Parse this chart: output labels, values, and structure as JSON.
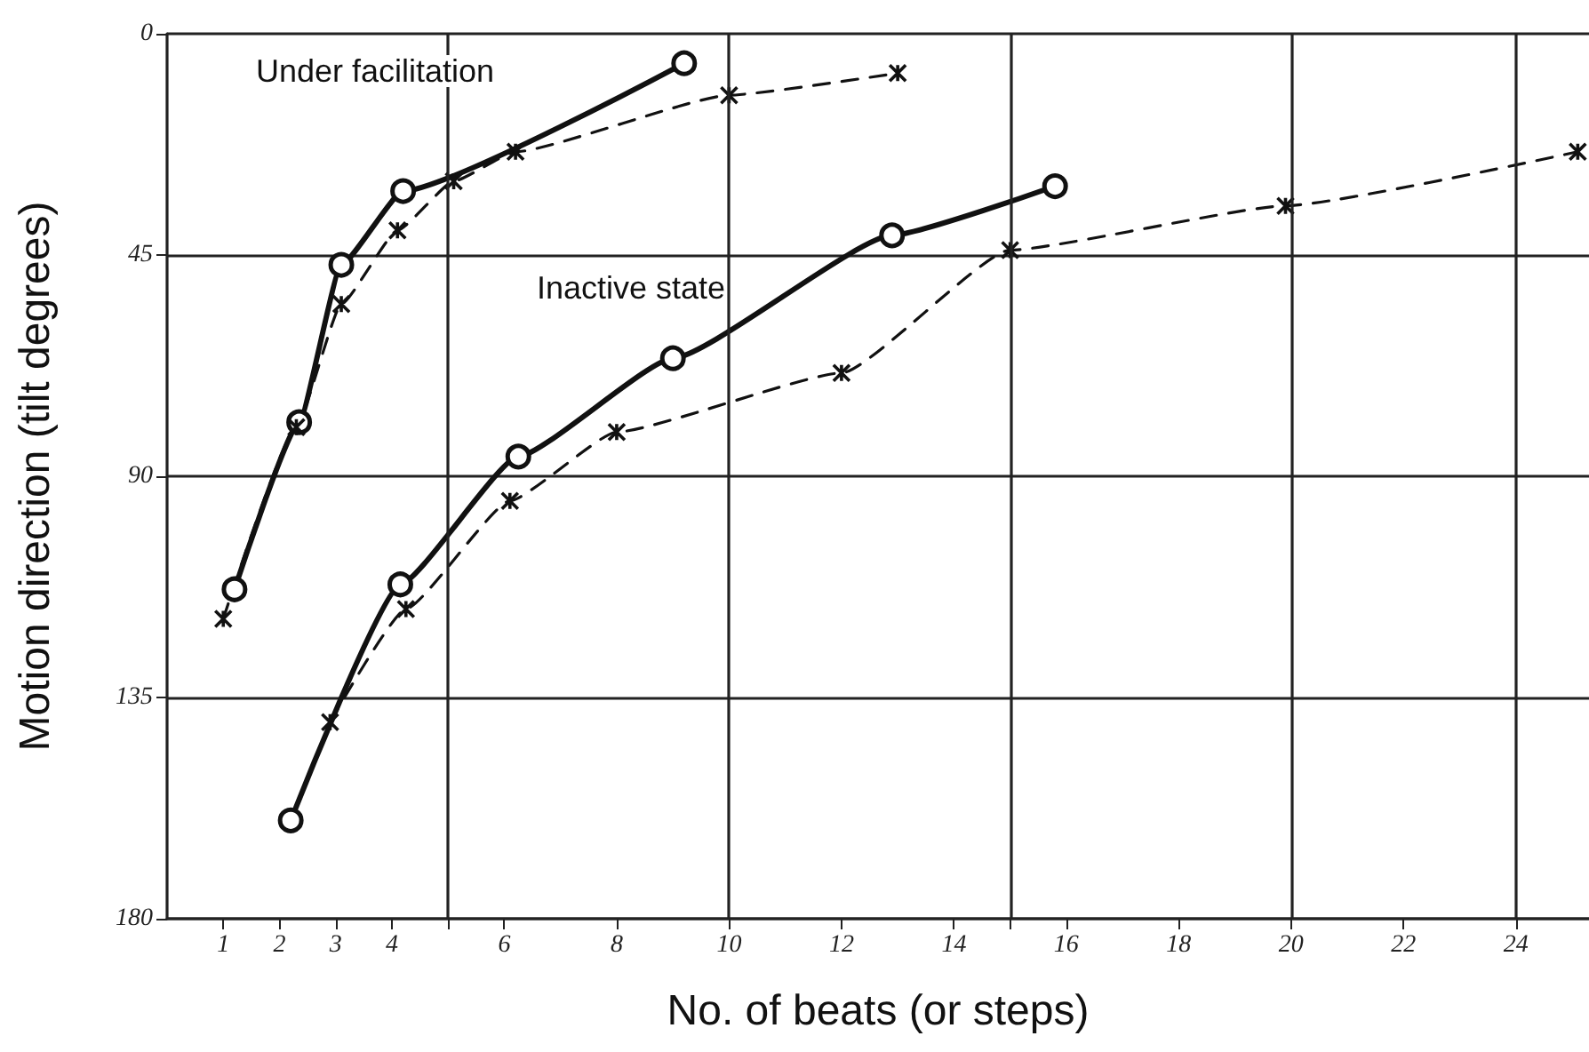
{
  "chart_data": {
    "type": "line",
    "xlabel": "No. of beats (or steps)",
    "ylabel": "Motion direction (tilt degrees)",
    "xlim": [
      0,
      25.3
    ],
    "ylim": [
      180,
      0
    ],
    "xticks": [
      1,
      2,
      3,
      4,
      {
        "value": 5,
        "label": null
      },
      6,
      8,
      10,
      12,
      14,
      {
        "value": 15,
        "label": null
      },
      16,
      18,
      20,
      22,
      24
    ],
    "yticks": [
      0,
      45,
      90,
      135,
      180
    ],
    "grid": "y",
    "ref_lines": [
      {
        "axis": "x",
        "value": 5
      },
      {
        "axis": "x",
        "value": 10
      },
      {
        "axis": "x",
        "value": 15
      },
      {
        "axis": "x",
        "value": 20
      },
      {
        "axis": "x",
        "value": 24
      }
    ],
    "annotations": [
      "Under facilitation",
      "Inactive state"
    ],
    "series": [
      {
        "color": "#111111",
        "line_style": "solid",
        "marker": "circle",
        "x": [
          1.2,
          2.35,
          3.1,
          4.2,
          9.2
        ],
        "values": [
          113,
          79,
          47,
          32,
          6
        ]
      },
      {
        "color": "#111111",
        "line_style": "dashed",
        "marker": "cross",
        "x": [
          1,
          2.3,
          3.1,
          4.1,
          5.1,
          6.2,
          10,
          13
        ],
        "values": [
          119,
          80,
          55,
          40,
          30,
          24,
          12.5,
          8
        ]
      },
      {
        "color": "#111111",
        "line_style": "solid",
        "marker": "circle",
        "x": [
          2.2,
          4.15,
          6.25,
          9,
          12.9,
          15.8
        ],
        "values": [
          160,
          112,
          86,
          66,
          41,
          31
        ]
      },
      {
        "color": "#111111",
        "line_style": "dashed",
        "marker": "cross",
        "x": [
          2.9,
          4.25,
          6.1,
          8,
          12,
          15,
          19.9,
          25.1
        ],
        "values": [
          140,
          117,
          95,
          81,
          69,
          44,
          35,
          24
        ]
      }
    ]
  }
}
